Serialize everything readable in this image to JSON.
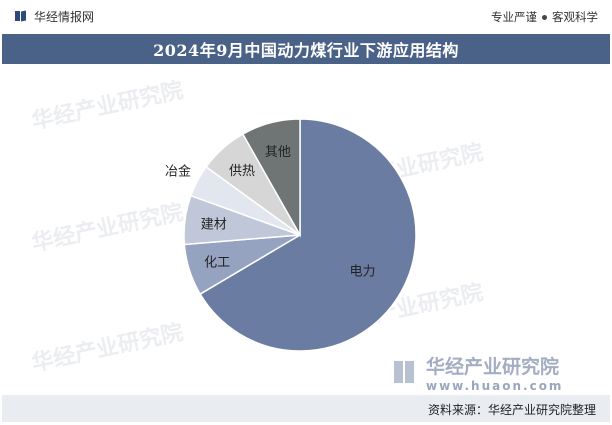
{
  "header": {
    "brand": "华经情报网",
    "tagline_left": "专业严谨",
    "tagline_right": "客观科学"
  },
  "title": "2024年9月中国动力煤行业下游应用结构",
  "watermark": {
    "name": "华经产业研究院",
    "url": "www.huaon.com"
  },
  "footer": {
    "source": "资料来源：华经产业研究院整理"
  },
  "colors": {
    "title_bar": "#4a6188",
    "footer_bar": "#e9ecf1"
  },
  "chart_data": {
    "type": "pie",
    "title": "2024年9月中国动力煤行业下游应用结构",
    "start_angle_deg": 0,
    "direction": "clockwise",
    "slices": [
      {
        "label": "电力",
        "value": 66.5,
        "color": "#6a7ca2"
      },
      {
        "label": "化工",
        "value": 7.2,
        "color": "#96a3c0"
      },
      {
        "label": "建材",
        "value": 6.8,
        "color": "#bfc7d8"
      },
      {
        "label": "冶金",
        "value": 4.5,
        "color": "#e2e6ee"
      },
      {
        "label": "供热",
        "value": 6.8,
        "color": "#d6d6d6"
      },
      {
        "label": "其他",
        "value": 8.2,
        "color": "#6f7575"
      }
    ]
  }
}
